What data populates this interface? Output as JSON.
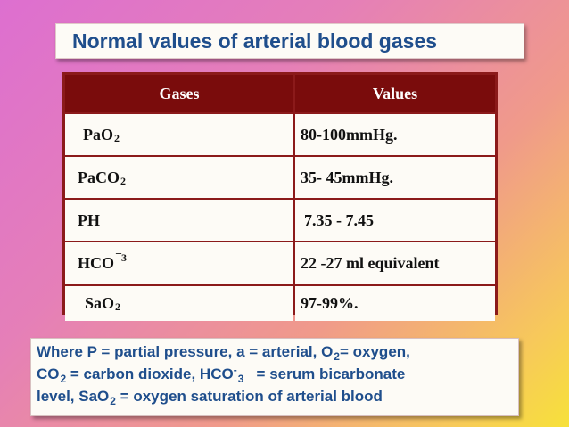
{
  "title": "Normal values of arterial blood gases",
  "table": {
    "headers": [
      "Gases",
      "Values"
    ],
    "rows": [
      {
        "gas_base": "PaO",
        "gas_sub": "2",
        "gas_sup": "",
        "value": "80-100mmHg."
      },
      {
        "gas_base": "PaCO",
        "gas_sub": "2",
        "gas_sup": "",
        "value": "35- 45mmHg."
      },
      {
        "gas_base": "PH",
        "gas_sub": "",
        "gas_sup": "",
        "value": "7.35 - 7.45"
      },
      {
        "gas_base": "HCO",
        "gas_sub": "",
        "gas_sup": "¯3",
        "value": "22 -27 ml equivalent"
      },
      {
        "gas_base": "SaO",
        "gas_sub": "2",
        "gas_sup": "",
        "value": "97-99%."
      }
    ]
  },
  "note": {
    "l1a": "Where P = partial pressure, a = arterial, O",
    "l1b": "2",
    "l1c": "= oxygen,",
    "l2a": "CO",
    "l2b": "2",
    "l2c": " = carbon dioxide, HCO",
    "l2d": "-",
    "l2e": "3",
    "l2f": "   = serum bicarbonate",
    "l3a": "level, SaO",
    "l3b": "2",
    "l3c": " = oxygen saturation of arterial blood"
  }
}
